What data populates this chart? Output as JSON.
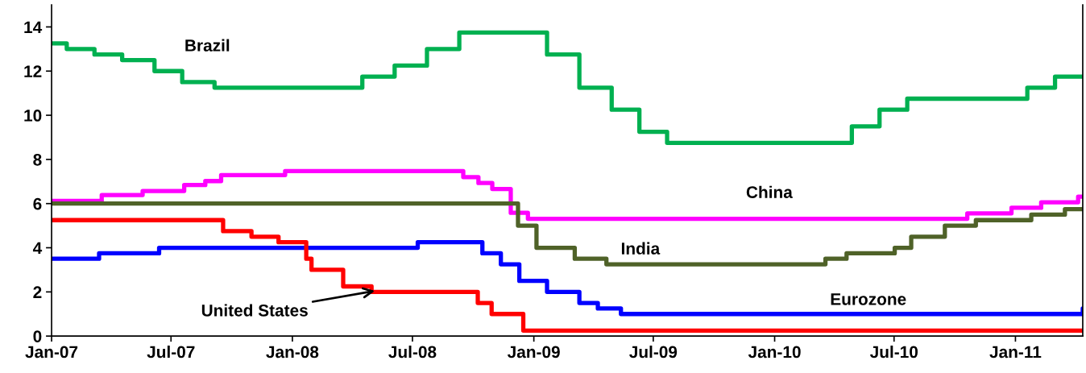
{
  "chart_data": {
    "type": "step",
    "xlim": [
      "2007-01-01",
      "2011-04-13"
    ],
    "xticks": [
      {
        "value": "2007-01-01",
        "label": "Jan-07"
      },
      {
        "value": "2007-07-01",
        "label": "Jul-07"
      },
      {
        "value": "2008-01-01",
        "label": "Jan-08"
      },
      {
        "value": "2008-07-01",
        "label": "Jul-08"
      },
      {
        "value": "2009-01-01",
        "label": "Jan-09"
      },
      {
        "value": "2009-07-01",
        "label": "Jul-09"
      },
      {
        "value": "2010-01-01",
        "label": "Jan-10"
      },
      {
        "value": "2010-07-01",
        "label": "Jul-10"
      },
      {
        "value": "2011-01-01",
        "label": "Jan-11"
      }
    ],
    "ylim": [
      0,
      15
    ],
    "yticks": [
      0,
      2,
      4,
      6,
      8,
      10,
      12,
      14
    ],
    "grid": false,
    "legend": false,
    "marker": "none",
    "line_style": "solid",
    "series": [
      {
        "name": "Brazil",
        "color": "#00b050",
        "x": [
          "2007-01-01",
          "2007-01-24",
          "2007-03-07",
          "2007-04-18",
          "2007-06-06",
          "2007-07-18",
          "2007-09-05",
          "2008-04-16",
          "2008-06-04",
          "2008-07-23",
          "2008-09-10",
          "2009-01-21",
          "2009-03-11",
          "2009-04-29",
          "2009-06-10",
          "2009-07-22",
          "2010-04-28",
          "2010-06-09",
          "2010-07-21",
          "2011-01-19",
          "2011-03-02",
          "2011-04-13"
        ],
        "values": [
          13.25,
          13.0,
          12.75,
          12.5,
          12.0,
          11.5,
          11.25,
          11.75,
          12.25,
          13.0,
          13.75,
          12.75,
          11.25,
          10.25,
          9.25,
          8.75,
          9.5,
          10.25,
          10.75,
          11.25,
          11.75,
          11.75
        ]
      },
      {
        "name": "China",
        "color": "#ff00ff",
        "x": [
          "2007-01-01",
          "2007-03-18",
          "2007-05-19",
          "2007-07-21",
          "2007-08-22",
          "2007-09-15",
          "2007-12-21",
          "2008-09-16",
          "2008-10-09",
          "2008-10-30",
          "2008-11-27",
          "2008-12-23",
          "2010-10-20",
          "2010-12-26",
          "2011-02-09",
          "2011-04-06",
          "2011-04-13"
        ],
        "values": [
          6.12,
          6.39,
          6.57,
          6.84,
          7.02,
          7.29,
          7.47,
          7.2,
          6.93,
          6.66,
          5.58,
          5.31,
          5.56,
          5.81,
          6.06,
          6.31,
          6.31
        ]
      },
      {
        "name": "India",
        "color": "#4f6228",
        "x": [
          "2007-01-01",
          "2008-12-08",
          "2009-01-05",
          "2009-03-04",
          "2009-04-21",
          "2010-03-19",
          "2010-04-20",
          "2010-07-02",
          "2010-07-27",
          "2010-09-16",
          "2010-11-02",
          "2011-01-25",
          "2011-03-17",
          "2011-04-13"
        ],
        "values": [
          6.0,
          5.0,
          4.0,
          3.5,
          3.25,
          3.5,
          3.75,
          4.0,
          4.5,
          5.0,
          5.25,
          5.5,
          5.75,
          5.75
        ]
      },
      {
        "name": "Eurozone",
        "color": "#0000ff",
        "x": [
          "2007-01-01",
          "2007-03-14",
          "2007-06-13",
          "2008-07-09",
          "2008-10-15",
          "2008-11-12",
          "2008-12-10",
          "2009-01-21",
          "2009-03-11",
          "2009-04-08",
          "2009-05-13",
          "2011-04-13"
        ],
        "values": [
          3.5,
          3.75,
          4.0,
          4.25,
          3.75,
          3.25,
          2.5,
          2.0,
          1.5,
          1.25,
          1.0,
          1.25
        ]
      },
      {
        "name": "United States",
        "color": "#ff0000",
        "x": [
          "2007-01-01",
          "2007-09-18",
          "2007-10-31",
          "2007-12-11",
          "2008-01-22",
          "2008-01-30",
          "2008-03-18",
          "2008-04-30",
          "2008-10-08",
          "2008-10-29",
          "2008-12-16",
          "2011-04-13"
        ],
        "values": [
          5.25,
          4.75,
          4.5,
          4.25,
          3.5,
          3.0,
          2.25,
          2.0,
          1.5,
          1.0,
          0.25,
          0.25
        ]
      }
    ]
  }
}
